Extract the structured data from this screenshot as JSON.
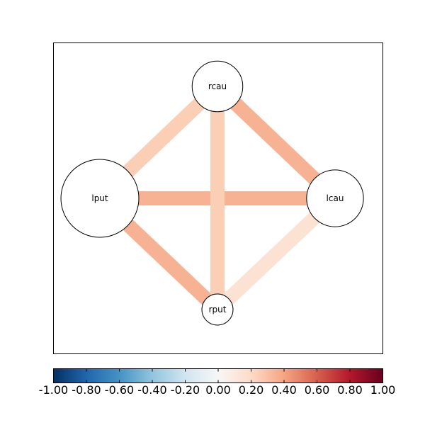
{
  "chart_data": {
    "type": "network",
    "nodes": [
      {
        "id": "lput",
        "label": "lput",
        "size": 1.0
      },
      {
        "id": "rcau",
        "label": "rcau",
        "size": 0.65
      },
      {
        "id": "lcau",
        "label": "lcau",
        "size": 0.73
      },
      {
        "id": "rput",
        "label": "rput",
        "size": 0.4
      }
    ],
    "edges": [
      {
        "source": "lput",
        "target": "lcau",
        "value": 0.35
      },
      {
        "source": "lput",
        "target": "rput",
        "value": 0.35
      },
      {
        "source": "rcau",
        "target": "lcau",
        "value": 0.35
      },
      {
        "source": "lput",
        "target": "rcau",
        "value": 0.25
      },
      {
        "source": "rcau",
        "target": "rput",
        "value": 0.25
      },
      {
        "source": "lcau",
        "target": "rput",
        "value": 0.15
      }
    ],
    "colorbar": {
      "colormap": "RdBu_r",
      "min": -1.0,
      "max": 1.0,
      "ticks": [
        "-1.00",
        "-0.80",
        "-0.60",
        "-0.40",
        "-0.20",
        "0.00",
        "0.20",
        "0.40",
        "0.60",
        "0.80",
        "1.00"
      ]
    }
  }
}
